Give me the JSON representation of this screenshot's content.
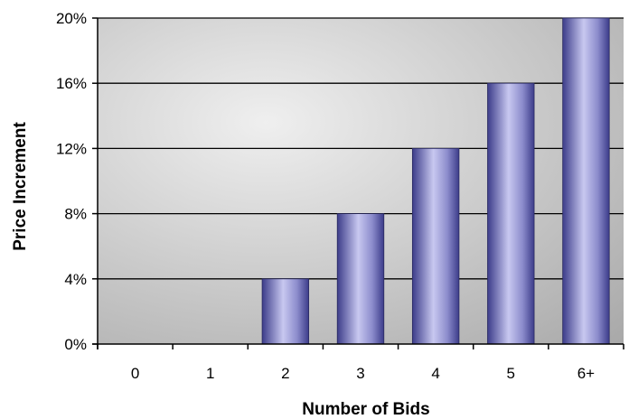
{
  "chart_data": {
    "type": "bar",
    "title": "",
    "xlabel": "Number of Bids",
    "ylabel": "Price Increment",
    "categories": [
      "0",
      "1",
      "2",
      "3",
      "4",
      "5",
      "6+"
    ],
    "values": [
      0,
      0,
      4,
      8,
      12,
      16,
      20
    ],
    "ylim": [
      0,
      20
    ],
    "yticks": [
      0,
      4,
      8,
      12,
      16,
      20
    ],
    "ytick_labels": [
      "0%",
      "4%",
      "8%",
      "12%",
      "16%",
      "20%"
    ],
    "grid": "horizontal",
    "legend": "none",
    "colors": {
      "bar_light": "#c8c8f0",
      "bar_mid": "#8c8ccc",
      "bar_dark": "#3c3c8a",
      "plot_bg_light": "#efefef",
      "plot_bg_dark": "#a9a9a9",
      "gridline": "#000000"
    }
  }
}
